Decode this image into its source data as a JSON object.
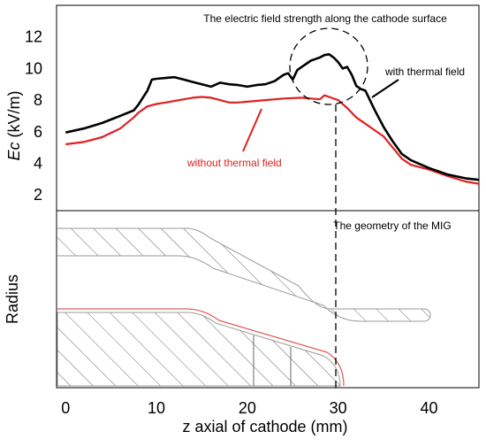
{
  "chart_data": [
    {
      "type": "line",
      "title": "The electric field strength along the cathode surface",
      "ylabel": "Ec (kV/m)",
      "ylabel_parts": {
        "var": "Ec",
        "unit": " (kV/m)"
      },
      "ylim": [
        1,
        14
      ],
      "yticks": [
        2,
        4,
        6,
        8,
        10,
        12
      ],
      "xlim": [
        -1,
        45.5
      ],
      "grid": false,
      "colors": {
        "with": "#000000",
        "without": "#e02020"
      },
      "series": [
        {
          "name": "with thermal field",
          "x": [
            0,
            2,
            4,
            6,
            7.5,
            8,
            9,
            9.5,
            10,
            11,
            12,
            13,
            14,
            15,
            16,
            17,
            18,
            19,
            20,
            21,
            22,
            23,
            24,
            24.5,
            25,
            25.5,
            26,
            26.5,
            27,
            27.5,
            28,
            28.5,
            29,
            29.5,
            30,
            30.5,
            31,
            31.5,
            32,
            32.5,
            33,
            34,
            35,
            36,
            37,
            38,
            40,
            42,
            44,
            45.5
          ],
          "y": [
            5.95,
            6.2,
            6.55,
            7.0,
            7.35,
            7.7,
            8.6,
            9.3,
            9.35,
            9.4,
            9.45,
            9.3,
            9.15,
            9.0,
            8.85,
            9.1,
            9.0,
            8.95,
            8.85,
            8.95,
            9.0,
            9.2,
            9.6,
            9.7,
            9.3,
            9.9,
            10.1,
            10.3,
            10.5,
            10.6,
            10.7,
            10.85,
            10.9,
            10.7,
            10.4,
            10.0,
            10.1,
            9.6,
            8.9,
            8.7,
            8.6,
            7.4,
            6.3,
            5.4,
            4.6,
            4.2,
            3.7,
            3.3,
            3.05,
            2.95
          ]
        },
        {
          "name": "without thermal field",
          "x": [
            0,
            2,
            4,
            6,
            7.5,
            8,
            9,
            10,
            11,
            12,
            13,
            14,
            15,
            16,
            17,
            18,
            19,
            20,
            22,
            24,
            26,
            27,
            28,
            28.5,
            29,
            30,
            31,
            32,
            33,
            34,
            35,
            36,
            37,
            38,
            40,
            42,
            44,
            45.5
          ],
          "y": [
            5.2,
            5.35,
            5.65,
            6.2,
            6.9,
            7.2,
            7.6,
            7.75,
            7.85,
            7.95,
            8.05,
            8.15,
            8.2,
            8.15,
            8.0,
            7.85,
            7.85,
            7.9,
            8.0,
            8.1,
            8.15,
            8.1,
            8.05,
            8.3,
            8.2,
            8.0,
            7.5,
            6.9,
            6.5,
            6.1,
            5.7,
            5.0,
            4.3,
            3.9,
            3.6,
            3.2,
            2.85,
            2.7
          ]
        }
      ],
      "annotations": {
        "with_label": "with thermal field",
        "without_label": "without thermal field"
      }
    },
    {
      "type": "diagram",
      "title": "The geometry of the MIG",
      "ylabel": "Radius",
      "xlabel": "z axial of cathode (mm)",
      "xticks": [
        0,
        10,
        20,
        30,
        40
      ],
      "xlim": [
        -1,
        45.5
      ]
    }
  ]
}
